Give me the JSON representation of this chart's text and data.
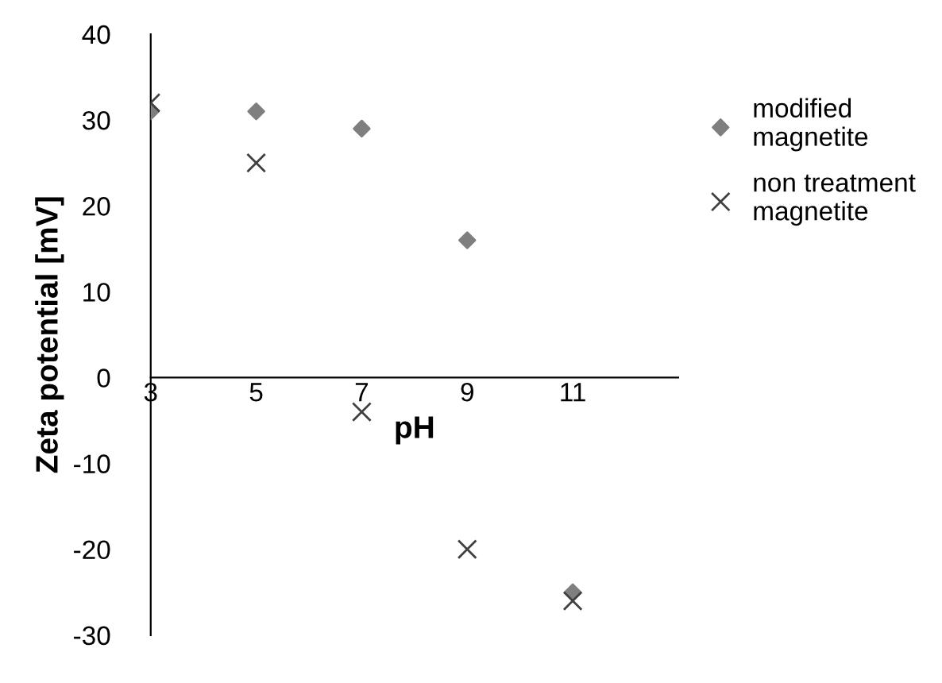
{
  "chart_data": {
    "type": "scatter",
    "xlabel": "pH",
    "ylabel": "Zeta potential [mV]",
    "x": [
      3,
      5,
      7,
      9,
      11
    ],
    "series": [
      {
        "name": "modified magnetite",
        "color": "#7f7f7f",
        "marker": "diamond",
        "values": [
          31,
          31,
          29,
          16,
          -25
        ]
      },
      {
        "name": "non treatment magnetite",
        "color": "#404040",
        "marker": "cross",
        "values": [
          32,
          25,
          -4,
          -20,
          -26
        ]
      }
    ],
    "xlim": [
      3,
      13
    ],
    "xticks": [
      3,
      5,
      7,
      9,
      11
    ],
    "ylim": [
      -30,
      40
    ],
    "yticks": [
      -30,
      -20,
      -10,
      0,
      10,
      20,
      30,
      40
    ],
    "grid": false,
    "legend": "top right"
  }
}
